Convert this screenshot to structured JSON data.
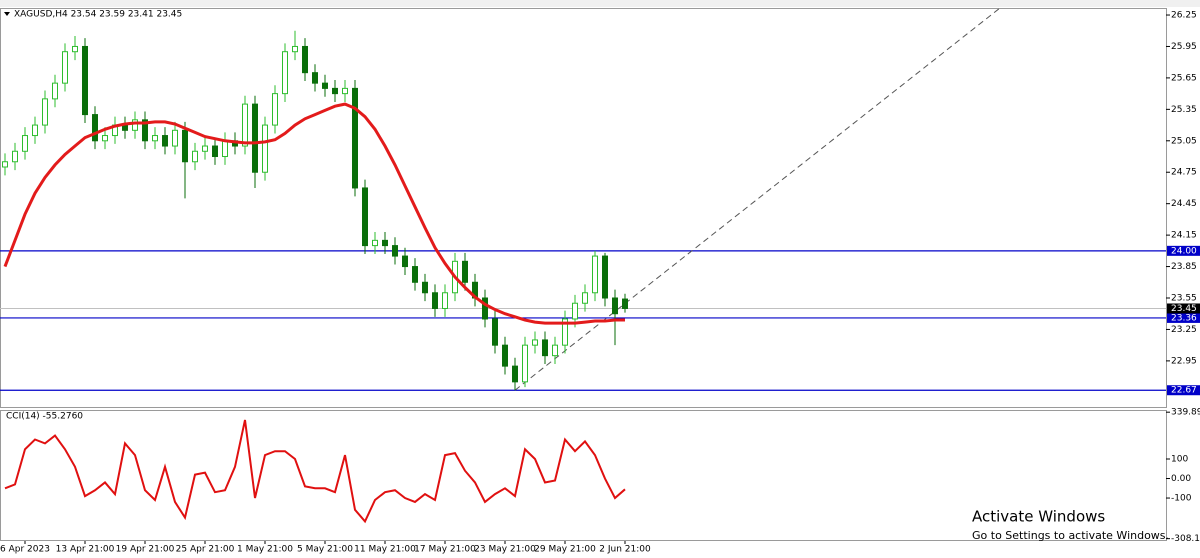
{
  "chart_data": {
    "type": "candlestick",
    "title": "XAGUSD,H4  23.54 23.59 23.41 23.45",
    "categories": [
      null,
      null,
      "6 Apr 2023",
      null,
      null,
      null,
      null,
      null,
      "13 Apr 21:00",
      null,
      null,
      null,
      null,
      null,
      "19 Apr 21:00",
      null,
      null,
      null,
      null,
      null,
      "25 Apr 21:00",
      null,
      null,
      null,
      null,
      null,
      "1 May 21:00",
      null,
      null,
      null,
      null,
      null,
      "5 May 21:00",
      null,
      null,
      null,
      null,
      null,
      "11 May 21:00",
      null,
      null,
      null,
      null,
      null,
      "17 May 21:00",
      null,
      null,
      null,
      null,
      null,
      "23 May 21:00",
      null,
      null,
      null,
      null,
      null,
      "29 May 21:00",
      null,
      null,
      null,
      null,
      null,
      "2 Jun 21:00"
    ],
    "open": [
      24.8,
      24.85,
      24.95,
      25.1,
      25.2,
      25.45,
      25.6,
      25.9,
      25.95,
      25.3,
      25.05,
      25.1,
      25.2,
      25.15,
      25.25,
      25.05,
      25.1,
      25.0,
      25.15,
      24.85,
      24.95,
      25.0,
      24.9,
      25.05,
      25.0,
      25.4,
      24.75,
      25.2,
      25.5,
      25.9,
      25.95,
      25.7,
      25.6,
      25.55,
      25.5,
      25.55,
      24.6,
      24.05,
      24.1,
      24.05,
      23.95,
      23.85,
      23.7,
      23.6,
      23.45,
      23.6,
      23.9,
      23.7,
      23.55,
      23.35,
      23.1,
      22.9,
      22.75,
      23.1,
      23.15,
      23.0,
      23.1,
      23.35,
      23.5,
      23.6,
      23.95,
      23.55,
      23.54
    ],
    "high": [
      24.93,
      25.03,
      25.18,
      25.28,
      25.53,
      25.68,
      25.98,
      26.05,
      26.03,
      25.38,
      25.18,
      25.28,
      25.28,
      25.33,
      25.33,
      25.18,
      25.18,
      25.23,
      25.23,
      25.03,
      25.08,
      25.08,
      25.13,
      25.13,
      25.48,
      25.48,
      25.28,
      25.58,
      25.98,
      26.1,
      26.03,
      25.78,
      25.68,
      25.63,
      25.63,
      25.63,
      24.68,
      24.18,
      24.18,
      24.13,
      24.03,
      23.93,
      23.78,
      23.68,
      23.68,
      23.98,
      23.98,
      23.78,
      23.63,
      23.43,
      23.18,
      22.98,
      23.18,
      23.23,
      23.23,
      23.18,
      23.43,
      23.58,
      23.68,
      24.0,
      23.98,
      23.63,
      23.59
    ],
    "low": [
      24.72,
      24.77,
      24.87,
      25.02,
      25.12,
      25.37,
      25.52,
      25.82,
      25.22,
      24.97,
      24.97,
      25.02,
      25.07,
      25.07,
      24.97,
      24.97,
      24.92,
      24.92,
      24.5,
      24.77,
      24.87,
      24.82,
      24.82,
      24.92,
      24.92,
      24.6,
      24.67,
      25.12,
      25.42,
      25.82,
      25.62,
      25.52,
      25.47,
      25.42,
      25.42,
      24.52,
      23.97,
      23.97,
      23.97,
      23.87,
      23.77,
      23.62,
      23.52,
      23.37,
      23.37,
      23.52,
      23.62,
      23.47,
      23.27,
      23.02,
      22.82,
      22.67,
      22.7,
      23.02,
      22.92,
      22.92,
      23.02,
      23.27,
      23.42,
      23.52,
      23.47,
      23.1,
      23.41
    ],
    "close": [
      24.85,
      24.95,
      25.1,
      25.2,
      25.45,
      25.6,
      25.9,
      25.95,
      25.3,
      25.05,
      25.1,
      25.2,
      25.15,
      25.25,
      25.05,
      25.1,
      25.0,
      25.15,
      24.85,
      24.95,
      25.0,
      24.9,
      25.05,
      25.0,
      25.4,
      24.75,
      25.2,
      25.5,
      25.9,
      25.95,
      25.7,
      25.6,
      25.55,
      25.5,
      25.55,
      24.6,
      24.05,
      24.1,
      24.05,
      23.95,
      23.85,
      23.7,
      23.6,
      23.45,
      23.6,
      23.9,
      23.7,
      23.55,
      23.35,
      23.1,
      22.9,
      22.75,
      23.1,
      23.15,
      23.0,
      23.1,
      23.35,
      23.5,
      23.6,
      23.95,
      23.55,
      23.4,
      23.45
    ],
    "up_color": "#2ebd2e",
    "down_color": "#0a6e0a",
    "moving_average": {
      "color": "#e31b1b",
      "values": [
        23.85,
        24.1,
        24.35,
        24.55,
        24.7,
        24.82,
        24.92,
        25.0,
        25.08,
        25.12,
        25.16,
        25.19,
        25.21,
        25.22,
        25.22,
        25.23,
        25.23,
        25.21,
        25.17,
        25.13,
        25.09,
        25.07,
        25.05,
        25.04,
        25.03,
        25.03,
        25.04,
        25.06,
        25.12,
        25.2,
        25.26,
        25.3,
        25.34,
        25.38,
        25.4,
        25.36,
        25.28,
        25.16,
        25.0,
        24.82,
        24.62,
        24.42,
        24.22,
        24.03,
        23.88,
        23.75,
        23.65,
        23.56,
        23.49,
        23.44,
        23.4,
        23.37,
        23.34,
        23.32,
        23.31,
        23.31,
        23.31,
        23.31,
        23.32,
        23.33,
        23.33,
        23.34,
        23.34
      ]
    },
    "ylim": [
      22.51,
      26.317
    ],
    "yticks": [
      26.25,
      25.95,
      25.65,
      25.35,
      25.05,
      24.75,
      24.45,
      24.15,
      23.85,
      23.55,
      23.25,
      22.95
    ],
    "hlines": [
      {
        "value": 24,
        "label": "24.00"
      },
      23.36,
      22.67
    ],
    "hline_color": "#0000c8",
    "last_price": 23.45,
    "trendline": {
      "x": [
        51,
        99.5
      ],
      "y": [
        22.67,
        26.317
      ]
    },
    "indicator": {
      "type": "line",
      "title": "CCI(14) -55.2760",
      "color": "#e01010",
      "values": [
        -50,
        -30,
        150,
        200,
        180,
        220,
        150,
        60,
        -90,
        -60,
        -20,
        -80,
        180,
        120,
        -60,
        -110,
        60,
        -120,
        -200,
        20,
        30,
        -70,
        -60,
        60,
        300,
        -100,
        120,
        140,
        140,
        100,
        -40,
        -50,
        -50,
        -70,
        120,
        -160,
        -220,
        -110,
        -70,
        -60,
        -100,
        -120,
        -80,
        -110,
        120,
        130,
        40,
        -20,
        -120,
        -80,
        -50,
        -90,
        150,
        100,
        -20,
        -10,
        200,
        140,
        190,
        120,
        0,
        -100,
        -55.276
      ],
      "ylim": [
        -315,
        346
      ],
      "yticks": [
        339.893,
        100,
        {
          "value": 0,
          "label": "0.00"
        },
        -100,
        -308.127
      ]
    }
  },
  "watermark": {
    "title": "Activate Windows",
    "subtitle": "Go to Settings to activate Windows."
  }
}
